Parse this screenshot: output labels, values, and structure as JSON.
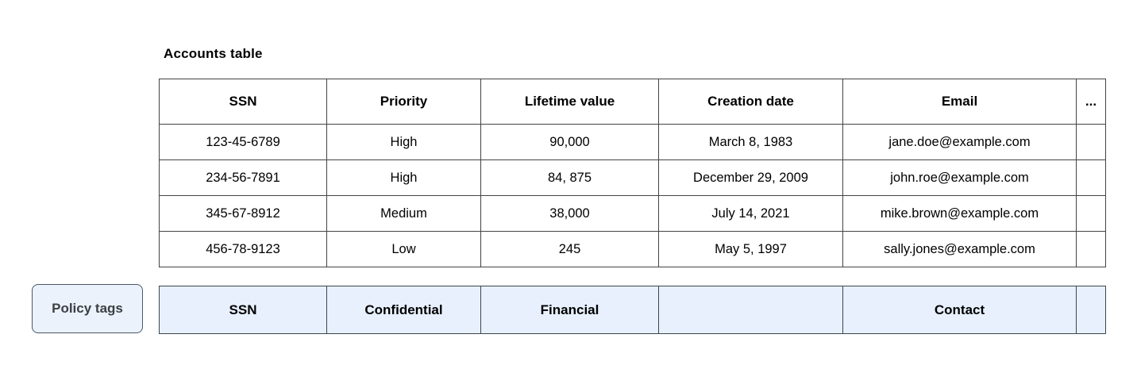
{
  "accounts_table": {
    "title": "Accounts table",
    "columns": [
      "SSN",
      "Priority",
      "Lifetime value",
      "Creation date",
      "Email",
      "..."
    ],
    "rows": [
      [
        "123-45-6789",
        "High",
        "90,000",
        "March 8, 1983",
        "jane.doe@example.com",
        ""
      ],
      [
        "234-56-7891",
        "High",
        "84, 875",
        "December 29, 2009",
        "john.roe@example.com",
        ""
      ],
      [
        "345-67-8912",
        "Medium",
        "38,000",
        "July 14, 2021",
        "mike.brown@example.com",
        ""
      ],
      [
        "456-78-9123",
        "Low",
        "245",
        "May 5, 1997",
        "sally.jones@example.com",
        ""
      ]
    ]
  },
  "policy_tags": {
    "label": "Policy tags",
    "tags": [
      "SSN",
      "Confidential",
      "Financial",
      "",
      "Contact",
      ""
    ]
  },
  "colors": {
    "page_background": "#ffffff",
    "table_border": "#434343",
    "policy_cell_background": "#e8f0fe",
    "policy_border": "#37474f",
    "chip_background": "#ebf2fc",
    "chip_border": "#4a5867",
    "chip_text": "#3c4043",
    "text": "#000000"
  }
}
